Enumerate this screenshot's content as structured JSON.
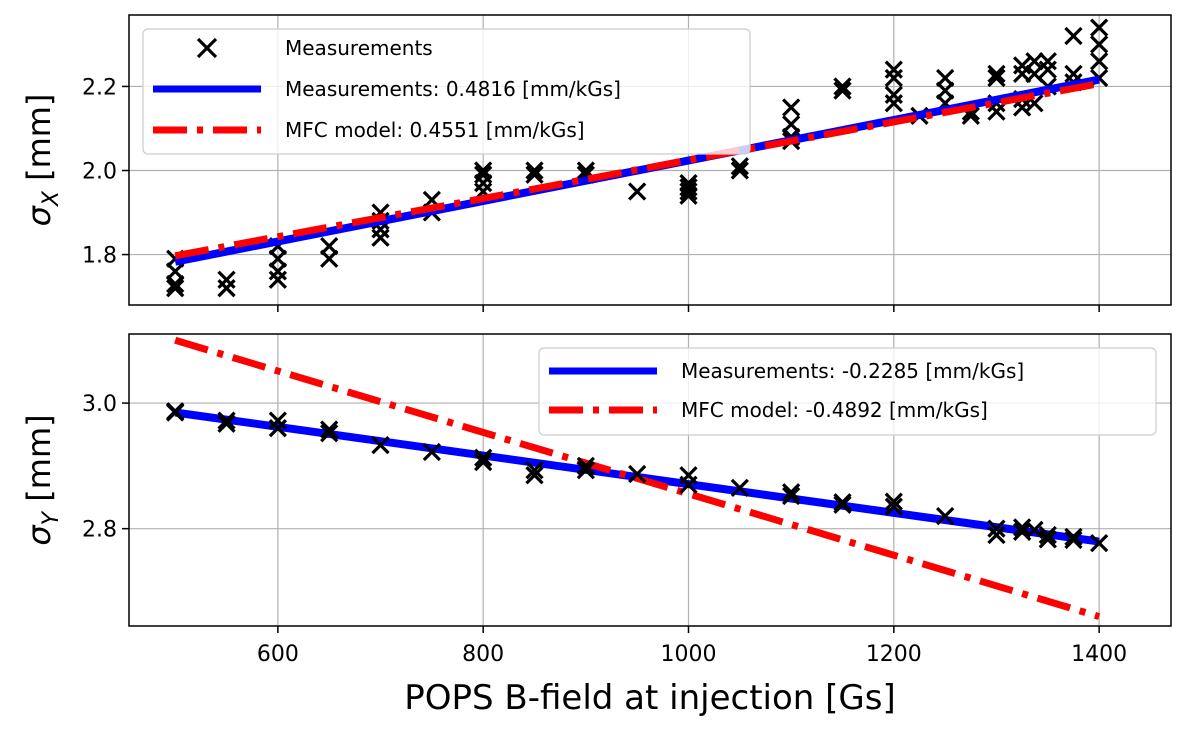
{
  "chart_data": [
    {
      "type": "scatter",
      "ylabel_symbol": "σ",
      "ylabel_sub": "X",
      "ylabel_unit": " [mm]",
      "xlim": [
        455,
        1470
      ],
      "ylim": [
        1.68,
        2.37
      ],
      "xticks": [
        600,
        800,
        1000,
        1200,
        1400
      ],
      "xticks_labeled": false,
      "yticks": [
        1.8,
        2.0,
        2.2
      ],
      "ytick_labels": [
        "1.8",
        "2.0",
        "2.2"
      ],
      "grid": true,
      "legend_position": "top-left",
      "series": [
        {
          "name": "Measurements",
          "kind": "markers",
          "color": "#000000",
          "points": [
            [
              500,
              1.79
            ],
            [
              500,
              1.76
            ],
            [
              500,
              1.73
            ],
            [
              500,
              1.72
            ],
            [
              550,
              1.74
            ],
            [
              550,
              1.72
            ],
            [
              600,
              1.82
            ],
            [
              600,
              1.79
            ],
            [
              600,
              1.76
            ],
            [
              600,
              1.74
            ],
            [
              650,
              1.82
            ],
            [
              650,
              1.79
            ],
            [
              700,
              1.9
            ],
            [
              700,
              1.88
            ],
            [
              700,
              1.86
            ],
            [
              700,
              1.84
            ],
            [
              750,
              1.93
            ],
            [
              750,
              1.9
            ],
            [
              800,
              2.0
            ],
            [
              800,
              1.99
            ],
            [
              800,
              1.97
            ],
            [
              800,
              1.95
            ],
            [
              850,
              2.0
            ],
            [
              850,
              1.99
            ],
            [
              900,
              2.0
            ],
            [
              900,
              1.99
            ],
            [
              950,
              1.95
            ],
            [
              1000,
              1.97
            ],
            [
              1000,
              1.96
            ],
            [
              1000,
              1.95
            ],
            [
              1000,
              1.94
            ],
            [
              1050,
              2.01
            ],
            [
              1050,
              2.0
            ],
            [
              1100,
              2.15
            ],
            [
              1100,
              2.11
            ],
            [
              1100,
              2.08
            ],
            [
              1100,
              2.07
            ],
            [
              1150,
              2.2
            ],
            [
              1150,
              2.19
            ],
            [
              1200,
              2.24
            ],
            [
              1200,
              2.22
            ],
            [
              1200,
              2.18
            ],
            [
              1200,
              2.16
            ],
            [
              1225,
              2.13
            ],
            [
              1250,
              2.22
            ],
            [
              1250,
              2.19
            ],
            [
              1250,
              2.16
            ],
            [
              1275,
              2.14
            ],
            [
              1275,
              2.13
            ],
            [
              1300,
              2.23
            ],
            [
              1300,
              2.22
            ],
            [
              1300,
              2.16
            ],
            [
              1300,
              2.14
            ],
            [
              1325,
              2.25
            ],
            [
              1325,
              2.23
            ],
            [
              1325,
              2.17
            ],
            [
              1325,
              2.15
            ],
            [
              1337,
              2.26
            ],
            [
              1337,
              2.23
            ],
            [
              1337,
              2.16
            ],
            [
              1350,
              2.26
            ],
            [
              1350,
              2.24
            ],
            [
              1350,
              2.2
            ],
            [
              1375,
              2.32
            ],
            [
              1375,
              2.23
            ],
            [
              1375,
              2.21
            ],
            [
              1400,
              2.34
            ],
            [
              1400,
              2.3
            ],
            [
              1400,
              2.26
            ],
            [
              1400,
              2.22
            ]
          ]
        },
        {
          "name": "Measurements: 0.4816 [mm/kGs]",
          "kind": "line",
          "style": "solid",
          "color": "#0000ff",
          "x": [
            500,
            1400
          ],
          "y": [
            1.783,
            2.2165
          ]
        },
        {
          "name": "MFC model: 0.4551 [mm/kGs]",
          "kind": "line",
          "style": "dashdot",
          "color": "#ff0000",
          "x": [
            500,
            1400
          ],
          "y": [
            1.797,
            2.2066
          ]
        }
      ]
    },
    {
      "type": "scatter",
      "ylabel_symbol": "σ",
      "ylabel_sub": "Y",
      "ylabel_unit": " [mm]",
      "xlabel": "POPS B-field at injection [Gs]",
      "xlim": [
        455,
        1470
      ],
      "ylim": [
        2.645,
        3.11
      ],
      "xticks": [
        600,
        800,
        1000,
        1200,
        1400
      ],
      "xtick_labels": [
        "600",
        "800",
        "1000",
        "1200",
        "1400"
      ],
      "yticks": [
        2.8,
        3.0
      ],
      "ytick_labels": [
        "2.8",
        "3.0"
      ],
      "grid": true,
      "legend_position": "top-right",
      "series": [
        {
          "kind": "markers",
          "color": "#000000",
          "points": [
            [
              500,
              2.987
            ],
            [
              500,
              2.985
            ],
            [
              550,
              2.972
            ],
            [
              550,
              2.967
            ],
            [
              600,
              2.972
            ],
            [
              600,
              2.96
            ],
            [
              650,
              2.958
            ],
            [
              650,
              2.952
            ],
            [
              700,
              2.933
            ],
            [
              750,
              2.922
            ],
            [
              800,
              2.913
            ],
            [
              800,
              2.906
            ],
            [
              850,
              2.893
            ],
            [
              850,
              2.885
            ],
            [
              900,
              2.9
            ],
            [
              900,
              2.893
            ],
            [
              950,
              2.887
            ],
            [
              1000,
              2.885
            ],
            [
              1000,
              2.87
            ],
            [
              1050,
              2.865
            ],
            [
              1100,
              2.858
            ],
            [
              1100,
              2.852
            ],
            [
              1150,
              2.842
            ],
            [
              1150,
              2.838
            ],
            [
              1200,
              2.843
            ],
            [
              1200,
              2.835
            ],
            [
              1250,
              2.82
            ],
            [
              1300,
              2.8
            ],
            [
              1300,
              2.79
            ],
            [
              1325,
              2.802
            ],
            [
              1325,
              2.795
            ],
            [
              1337,
              2.798
            ],
            [
              1350,
              2.79
            ],
            [
              1350,
              2.783
            ],
            [
              1375,
              2.787
            ],
            [
              1375,
              2.782
            ],
            [
              1400,
              2.777
            ]
          ]
        },
        {
          "name": "Measurements: -0.2285 [mm/kGs]",
          "kind": "line",
          "style": "solid",
          "color": "#0000ff",
          "x": [
            500,
            1400
          ],
          "y": [
            2.985,
            2.7795
          ]
        },
        {
          "name": "MFC model: -0.4892 [mm/kGs]",
          "kind": "line",
          "style": "dashdot",
          "color": "#ff0000",
          "x": [
            500,
            1400
          ],
          "y": [
            3.1,
            2.66
          ]
        }
      ]
    }
  ]
}
